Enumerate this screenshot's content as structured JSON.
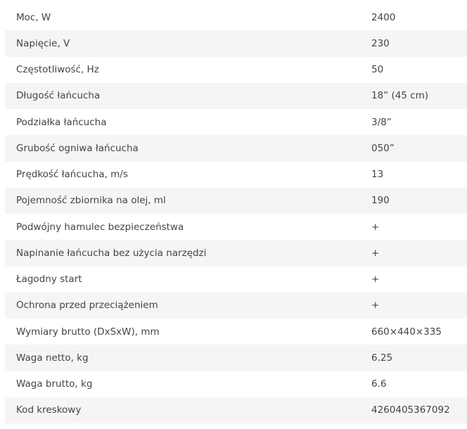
{
  "specs": [
    {
      "label": "Moc, W",
      "value": "2400"
    },
    {
      "label": "Napięcie, V",
      "value": "230"
    },
    {
      "label": "Częstotliwość, Hz",
      "value": "50"
    },
    {
      "label": "Długość łańcucha",
      "value": "18” (45 cm)"
    },
    {
      "label": "Podziałka łańcucha",
      "value": "3/8”"
    },
    {
      "label": "Grubość ogniwa łańcucha",
      "value": "050”"
    },
    {
      "label": "Prędkość łańcucha, m/s",
      "value": "13"
    },
    {
      "label": "Pojemność zbiornika na olej, ml",
      "value": "190"
    },
    {
      "label": "Podwójny hamulec bezpieczeństwa",
      "value": "+"
    },
    {
      "label": "Napinanie łańcucha bez użycia narzędzi",
      "value": "+"
    },
    {
      "label": "Łagodny start",
      "value": "+"
    },
    {
      "label": "Ochrona przed przeciążeniem",
      "value": "+"
    },
    {
      "label": "Wymiary brutto (DxSxW), mm",
      "value": "660×440×335"
    },
    {
      "label": "Waga netto, kg",
      "value": "6.25"
    },
    {
      "label": "Waga brutto, kg",
      "value": "6.6"
    },
    {
      "label": "Kod kreskowy",
      "value": "4260405367092"
    }
  ],
  "colors": {
    "stripe": "#f5f5f5",
    "text": "#444444"
  }
}
